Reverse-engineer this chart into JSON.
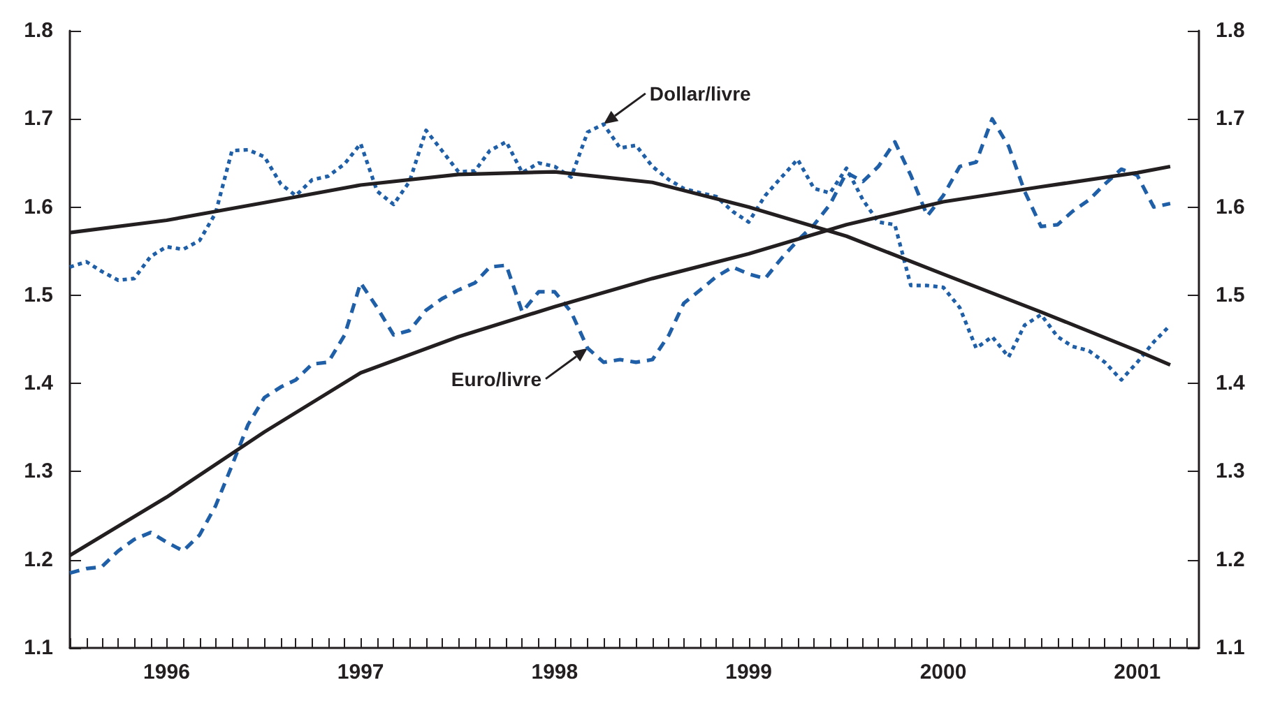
{
  "chart_data": {
    "type": "line",
    "x": [
      "1996-01",
      "1996-02",
      "1996-03",
      "1996-04",
      "1996-05",
      "1996-06",
      "1996-07",
      "1996-08",
      "1996-09",
      "1996-10",
      "1996-11",
      "1996-12",
      "1997-01",
      "1997-02",
      "1997-03",
      "1997-04",
      "1997-05",
      "1997-06",
      "1997-07",
      "1997-08",
      "1997-09",
      "1997-10",
      "1997-11",
      "1997-12",
      "1998-01",
      "1998-02",
      "1998-03",
      "1998-04",
      "1998-05",
      "1998-06",
      "1998-07",
      "1998-08",
      "1998-09",
      "1998-10",
      "1998-11",
      "1998-12",
      "1999-01",
      "1999-02",
      "1999-03",
      "1999-04",
      "1999-05",
      "1999-06",
      "1999-07",
      "1999-08",
      "1999-09",
      "1999-10",
      "1999-11",
      "1999-12",
      "2000-01",
      "2000-02",
      "2000-03",
      "2000-04",
      "2000-05",
      "2000-06",
      "2000-07",
      "2000-08",
      "2000-09",
      "2000-10",
      "2000-11",
      "2000-12",
      "2001-01",
      "2001-02",
      "2001-03",
      "2001-04",
      "2001-05",
      "2001-06",
      "2001-07",
      "2001-08",
      "2001-09"
    ],
    "series": [
      {
        "color": "#1f5fa8",
        "line_style": "dotted",
        "values": [
          1.532,
          1.538,
          1.527,
          1.517,
          1.519,
          1.544,
          1.555,
          1.552,
          1.562,
          1.593,
          1.664,
          1.665,
          1.657,
          1.626,
          1.613,
          1.631,
          1.635,
          1.649,
          1.672,
          1.618,
          1.603,
          1.629,
          1.687,
          1.664,
          1.64,
          1.641,
          1.664,
          1.674,
          1.639,
          1.65,
          1.646,
          1.634,
          1.685,
          1.694,
          1.667,
          1.67,
          1.646,
          1.631,
          1.621,
          1.616,
          1.612,
          1.595,
          1.583,
          1.613,
          1.634,
          1.654,
          1.621,
          1.616,
          1.644,
          1.608,
          1.583,
          1.58,
          1.511,
          1.511,
          1.509,
          1.486,
          1.44,
          1.453,
          1.43,
          1.466,
          1.478,
          1.453,
          1.442,
          1.437,
          1.424,
          1.404,
          1.424,
          1.447,
          1.466
        ]
      },
      {
        "color": "#1f5fa8",
        "line_style": "dashed",
        "values": [
          1.185,
          1.19,
          1.192,
          1.21,
          1.223,
          1.231,
          1.22,
          1.21,
          1.228,
          1.261,
          1.307,
          1.353,
          1.384,
          1.396,
          1.404,
          1.422,
          1.424,
          1.455,
          1.514,
          1.486,
          1.455,
          1.46,
          1.483,
          1.496,
          1.506,
          1.514,
          1.532,
          1.534,
          1.481,
          1.504,
          1.504,
          1.481,
          1.44,
          1.424,
          1.427,
          1.424,
          1.427,
          1.455,
          1.491,
          1.506,
          1.521,
          1.532,
          1.524,
          1.519,
          1.542,
          1.562,
          1.58,
          1.603,
          1.639,
          1.629,
          1.646,
          1.674,
          1.636,
          1.59,
          1.613,
          1.646,
          1.651,
          1.7,
          1.669,
          1.618,
          1.578,
          1.58,
          1.595,
          1.608,
          1.626,
          1.643,
          1.636,
          1.6,
          1.604
        ]
      },
      {
        "color": "#231f20",
        "line_style": "solid",
        "x": [
          "1996-01",
          "1996-07",
          "1997-01",
          "1997-07",
          "1998-01",
          "1998-07",
          "1999-01",
          "1999-07",
          "2000-01",
          "2000-07",
          "2001-01",
          "2001-07",
          "2001-09"
        ],
        "values": [
          1.571,
          1.585,
          1.605,
          1.625,
          1.637,
          1.64,
          1.628,
          1.6,
          1.567,
          1.524,
          1.481,
          1.437,
          1.421
        ]
      },
      {
        "color": "#231f20",
        "line_style": "solid",
        "x": [
          "1996-01",
          "1996-07",
          "1997-01",
          "1997-07",
          "1998-01",
          "1998-07",
          "1999-01",
          "1999-07",
          "2000-01",
          "2000-07",
          "2001-01",
          "2001-07",
          "2001-09"
        ],
        "values": [
          1.205,
          1.271,
          1.345,
          1.412,
          1.453,
          1.487,
          1.519,
          1.547,
          1.58,
          1.606,
          1.623,
          1.639,
          1.646
        ]
      }
    ],
    "annotations": [
      {
        "text": "Dollar/livre",
        "x": "1998-10",
        "y": 1.694
      },
      {
        "text": "Euro/livre",
        "x": "1998-09",
        "y": 1.44
      }
    ],
    "marker": "none",
    "grid": false,
    "xlim": [
      "1996-01-01",
      "2001-10-25"
    ],
    "xticks": [
      {
        "value": "1996-01",
        "label": null
      },
      {
        "value": "1996-02",
        "label": null
      },
      {
        "value": "1996-03",
        "label": null
      },
      {
        "value": "1996-04",
        "label": null
      },
      {
        "value": "1996-05",
        "label": null
      },
      {
        "value": "1996-06",
        "label": null
      },
      {
        "value": "1996-07",
        "label": "1996"
      },
      {
        "value": "1996-08",
        "label": null
      },
      {
        "value": "1996-09",
        "label": null
      },
      {
        "value": "1996-10",
        "label": null
      },
      {
        "value": "1996-11",
        "label": null
      },
      {
        "value": "1996-12",
        "label": null
      },
      {
        "value": "1997-01",
        "label": null
      },
      {
        "value": "1997-02",
        "label": null
      },
      {
        "value": "1997-03",
        "label": null
      },
      {
        "value": "1997-04",
        "label": null
      },
      {
        "value": "1997-05",
        "label": null
      },
      {
        "value": "1997-06",
        "label": null
      },
      {
        "value": "1997-07",
        "label": "1997"
      },
      {
        "value": "1997-08",
        "label": null
      },
      {
        "value": "1997-09",
        "label": null
      },
      {
        "value": "1997-10",
        "label": null
      },
      {
        "value": "1997-11",
        "label": null
      },
      {
        "value": "1997-12",
        "label": null
      },
      {
        "value": "1998-01",
        "label": null
      },
      {
        "value": "1998-02",
        "label": null
      },
      {
        "value": "1998-03",
        "label": null
      },
      {
        "value": "1998-04",
        "label": null
      },
      {
        "value": "1998-05",
        "label": null
      },
      {
        "value": "1998-06",
        "label": null
      },
      {
        "value": "1998-07",
        "label": "1998"
      },
      {
        "value": "1998-08",
        "label": null
      },
      {
        "value": "1998-09",
        "label": null
      },
      {
        "value": "1998-10",
        "label": null
      },
      {
        "value": "1998-11",
        "label": null
      },
      {
        "value": "1998-12",
        "label": null
      },
      {
        "value": "1999-01",
        "label": null
      },
      {
        "value": "1999-02",
        "label": null
      },
      {
        "value": "1999-03",
        "label": null
      },
      {
        "value": "1999-04",
        "label": null
      },
      {
        "value": "1999-05",
        "label": null
      },
      {
        "value": "1999-06",
        "label": null
      },
      {
        "value": "1999-07",
        "label": "1999"
      },
      {
        "value": "1999-08",
        "label": null
      },
      {
        "value": "1999-09",
        "label": null
      },
      {
        "value": "1999-10",
        "label": null
      },
      {
        "value": "1999-11",
        "label": null
      },
      {
        "value": "1999-12",
        "label": null
      },
      {
        "value": "2000-01",
        "label": null
      },
      {
        "value": "2000-02",
        "label": null
      },
      {
        "value": "2000-03",
        "label": null
      },
      {
        "value": "2000-04",
        "label": null
      },
      {
        "value": "2000-05",
        "label": null
      },
      {
        "value": "2000-06",
        "label": null
      },
      {
        "value": "2000-07",
        "label": "2000"
      },
      {
        "value": "2000-08",
        "label": null
      },
      {
        "value": "2000-09",
        "label": null
      },
      {
        "value": "2000-10",
        "label": null
      },
      {
        "value": "2000-11",
        "label": null
      },
      {
        "value": "2000-12",
        "label": null
      },
      {
        "value": "2001-01",
        "label": null
      },
      {
        "value": "2001-02",
        "label": null
      },
      {
        "value": "2001-03",
        "label": null
      },
      {
        "value": "2001-04",
        "label": null
      },
      {
        "value": "2001-05",
        "label": null
      },
      {
        "value": "2001-06",
        "label": null
      },
      {
        "value": "2001-07",
        "label": "2001"
      },
      {
        "value": "2001-08",
        "label": null
      },
      {
        "value": "2001-09",
        "label": null
      },
      {
        "value": "2001-10",
        "label": null
      }
    ],
    "ylim": [
      1.1,
      1.8
    ],
    "yticks": [
      1.1,
      1.2,
      1.3,
      1.4,
      1.5,
      1.6,
      1.7,
      1.8
    ],
    "y2lim": [
      1.1,
      1.8
    ],
    "y2ticks": [
      1.1,
      1.2,
      1.3,
      1.4,
      1.5,
      1.6,
      1.7,
      1.8
    ]
  }
}
